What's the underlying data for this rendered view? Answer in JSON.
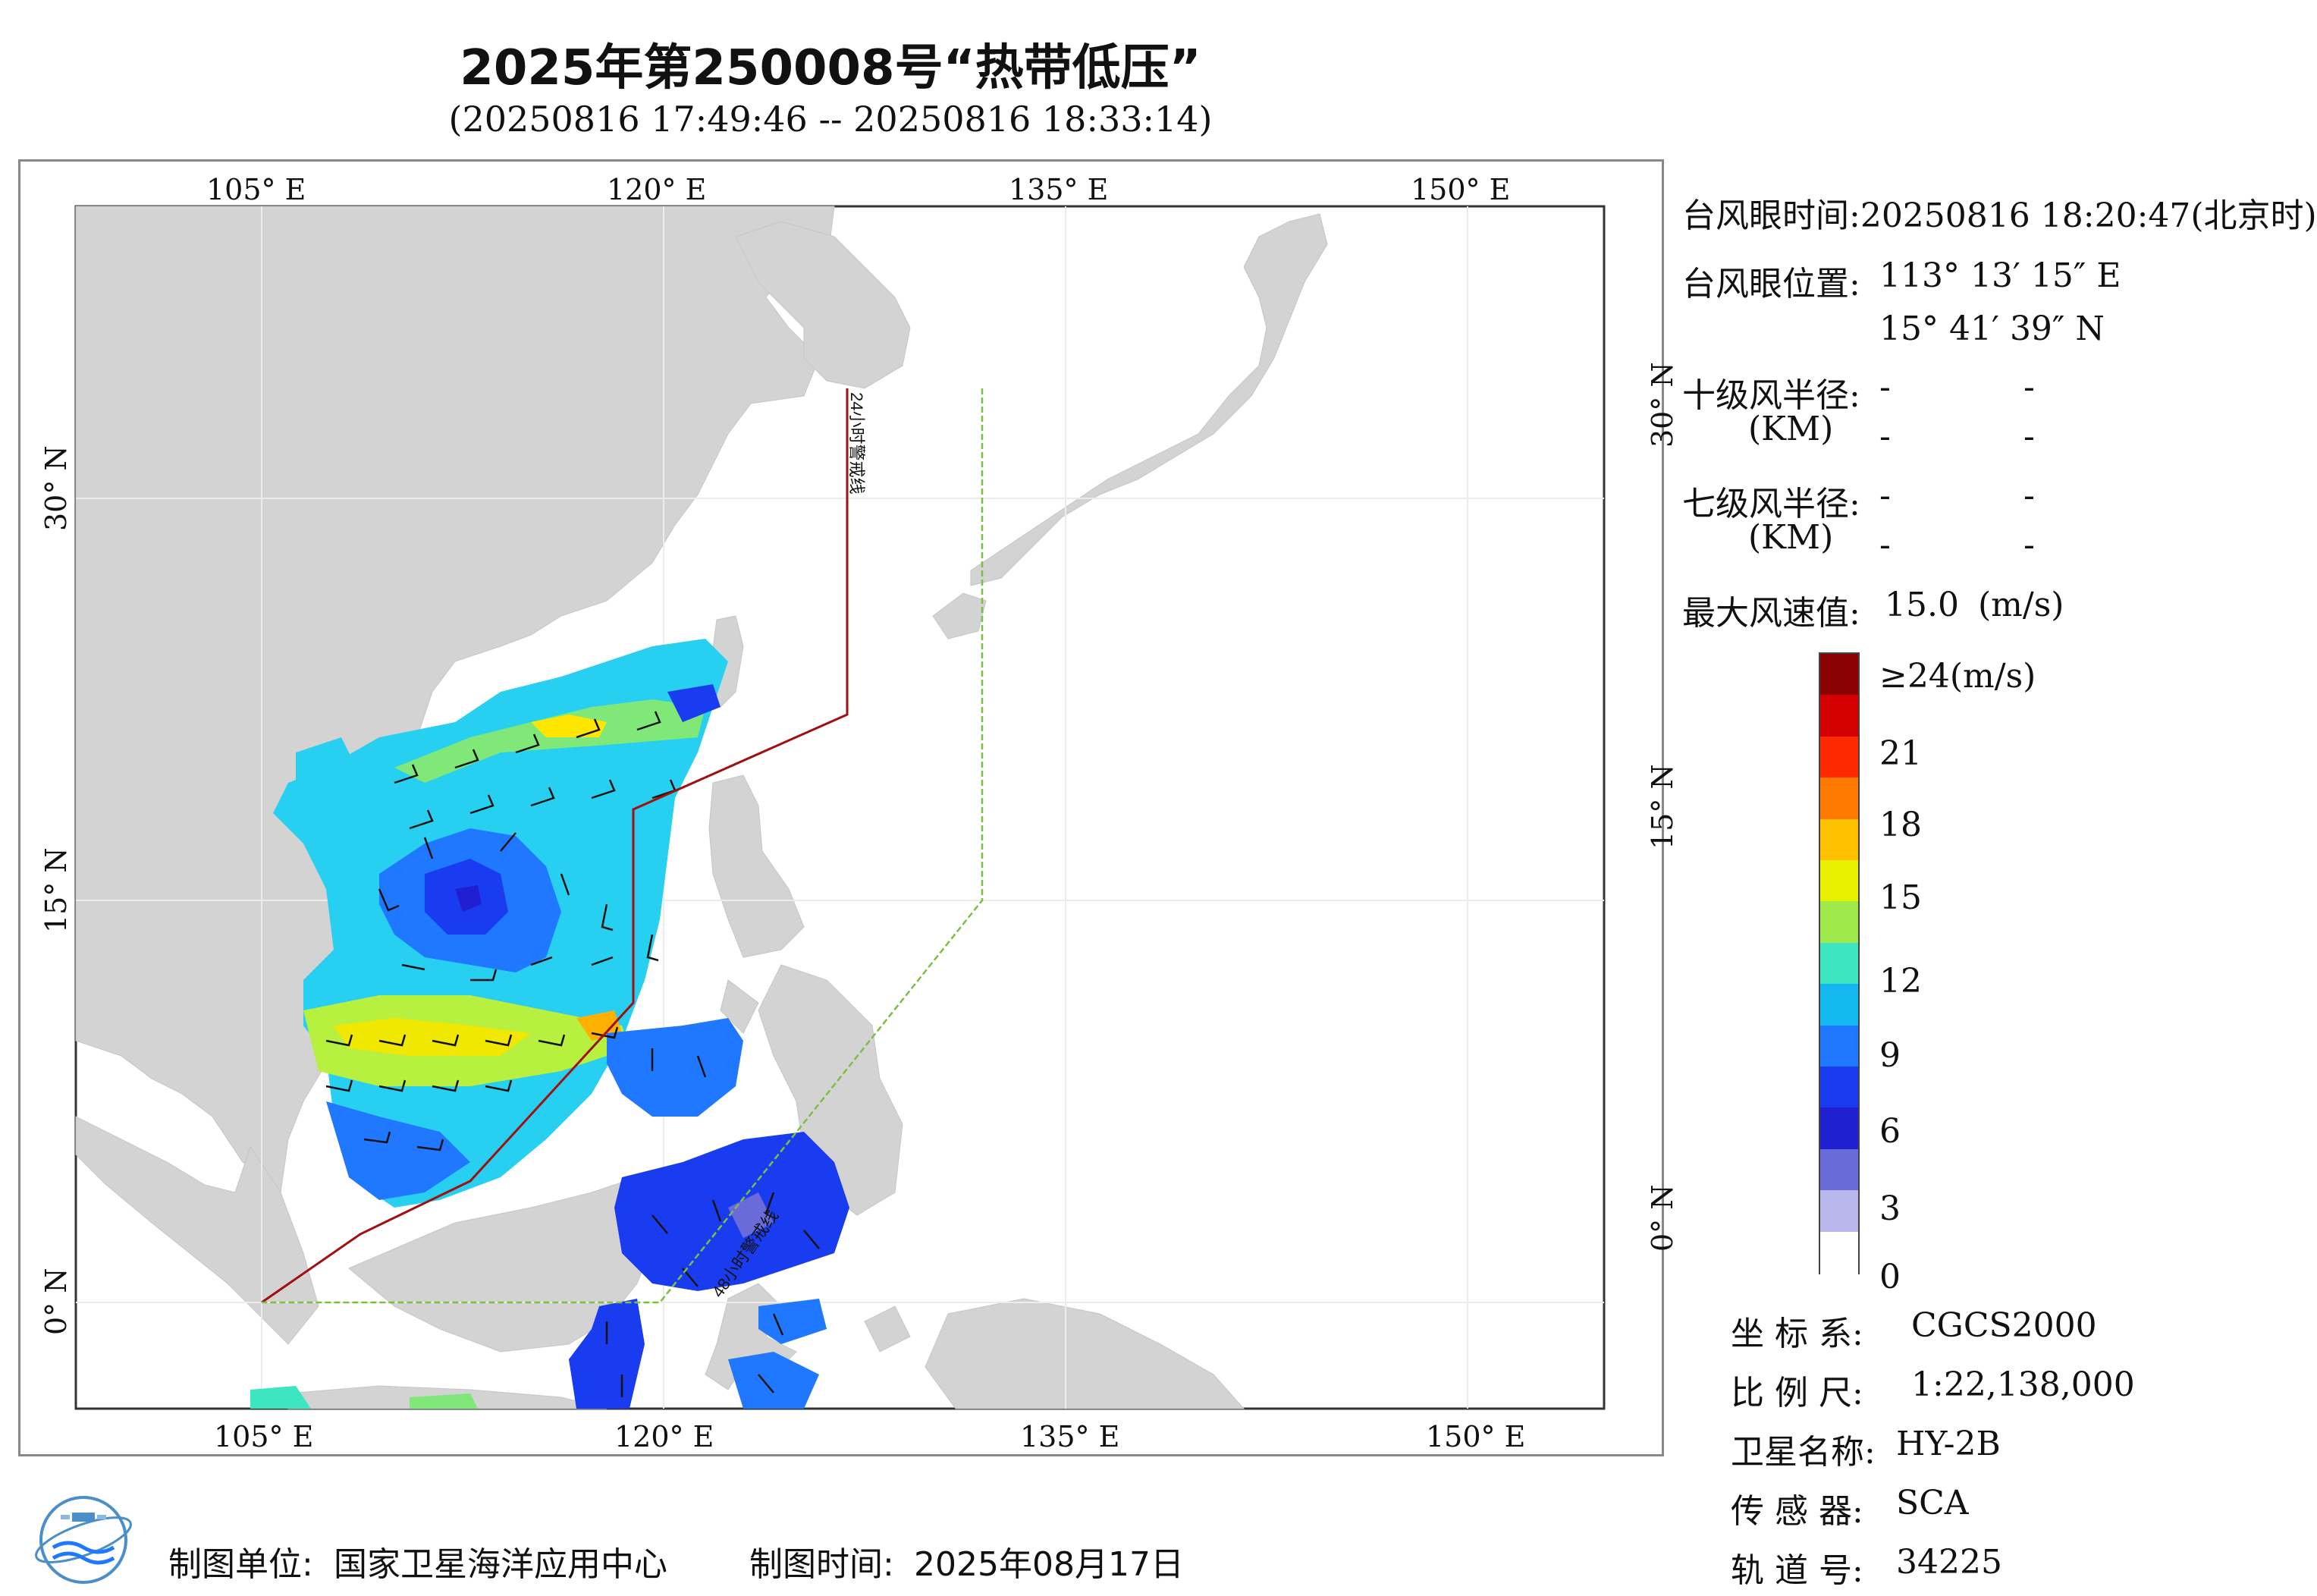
{
  "title": "2025年第250008号“热带低压”",
  "subtitle": "(20250816 17:49:46 -- 20250816 18:33:14)",
  "map": {
    "lon_labels": [
      "105° E",
      "120° E",
      "135° E",
      "150° E"
    ],
    "lat_labels": [
      "30° N",
      "15° N",
      "0° N"
    ],
    "warning_line_24h": "24小时警戒线",
    "warning_line_48h": "48小时警戒线"
  },
  "info": {
    "eye_time": "台风眼时间:20250816 18:20:47(北京时)",
    "eye_pos_label": "台风眼位置:",
    "eye_lon": "113° 13′ 15″ E",
    "eye_lat": "15° 41′ 39″ N",
    "r10_label": "十级风半径:",
    "r7_label": "七级风半径:",
    "km_label": "(KM)",
    "dash": "-",
    "max_wind_label": "最大风速值:",
    "max_wind_value": "15.0",
    "max_wind_unit": "(m/s)"
  },
  "colorbar": {
    "labels": [
      "≥24(m/s)",
      "21",
      "18",
      "15",
      "12",
      "9",
      "6",
      "3",
      "0"
    ],
    "colors": [
      "#8b0000",
      "#d40000",
      "#ff2a00",
      "#ff7a00",
      "#ffc000",
      "#e8f000",
      "#9ee84a",
      "#3ce6c0",
      "#12b8ef",
      "#1f78ff",
      "#1a3cf0",
      "#2020d0",
      "#6a6ad8",
      "#b8b8ec",
      "#ffffff"
    ]
  },
  "meta": {
    "coord_label": "坐 标 系:",
    "coord_value": "CGCS2000",
    "scale_label": "比 例 尺:",
    "scale_value": "1:22,138,000",
    "sat_label": "卫星名称:",
    "sat_value": "HY-2B",
    "sensor_label": "传 感 器:",
    "sensor_value": "SCA",
    "orbit_label": "轨 道 号:",
    "orbit_value": "34225"
  },
  "footer": {
    "unit_label": "制图单位:",
    "unit_value": "国家卫星海洋应用中心",
    "time_label": "制图时间:",
    "time_value": "2025年08月17日"
  }
}
